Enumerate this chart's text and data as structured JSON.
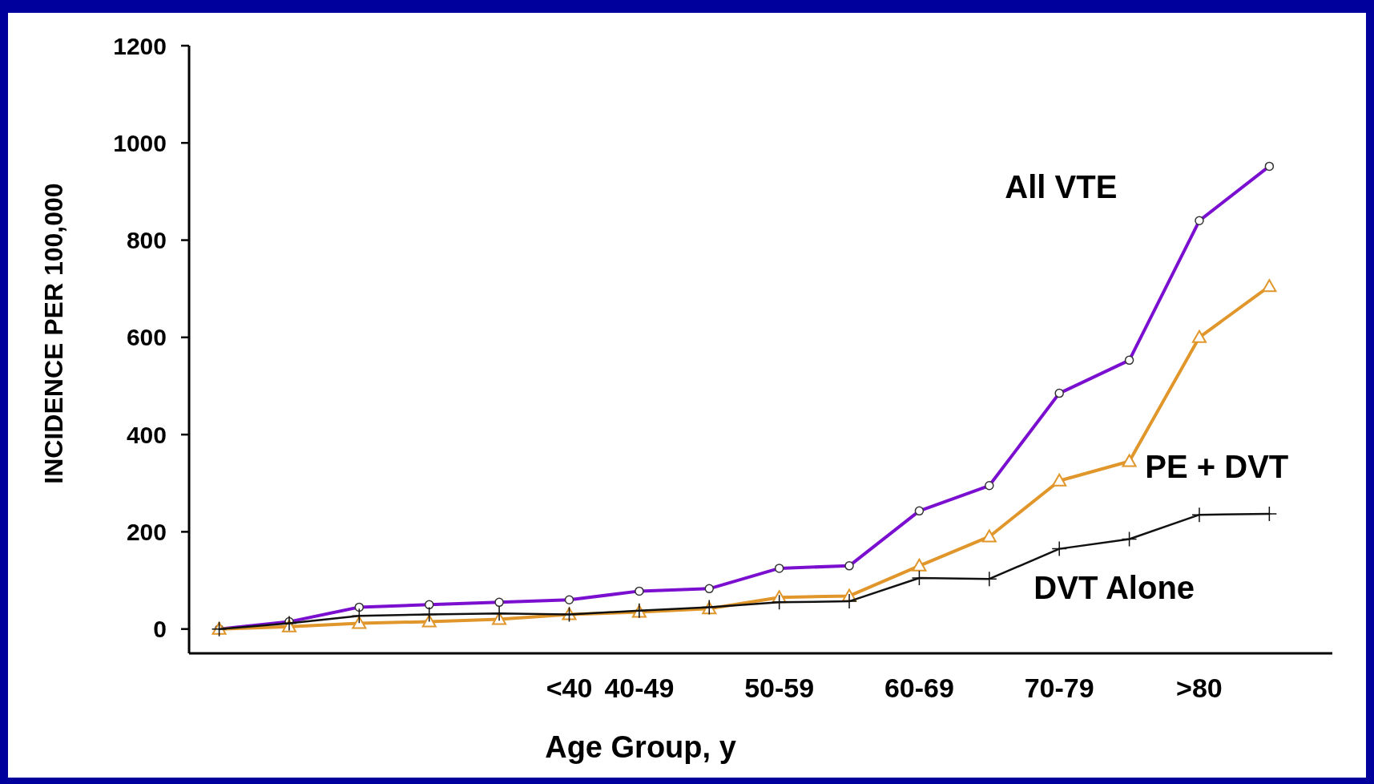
{
  "chart_data": {
    "type": "line",
    "categories": [
      null,
      null,
      null,
      null,
      null,
      "<40",
      "40-49",
      null,
      "50-59",
      null,
      "60-69",
      null,
      "70-79",
      null,
      ">80",
      null
    ],
    "ylim": [
      -50,
      1200
    ],
    "yticks": [
      0,
      200,
      400,
      600,
      800,
      1000,
      1200
    ],
    "xlabel": "Age Group, y",
    "ylabel": "INCIDENCE PER 100,000",
    "grid": false,
    "series": [
      {
        "name": "All VTE",
        "color": "#7b0fd0",
        "marker": "circle",
        "values": [
          0,
          15,
          45,
          50,
          55,
          60,
          78,
          83,
          125,
          130,
          243,
          295,
          485,
          553,
          840,
          952
        ]
      },
      {
        "name": "PE + DVT",
        "color": "#e0962a",
        "marker": "triangle",
        "values": [
          0,
          5,
          12,
          15,
          20,
          30,
          35,
          42,
          65,
          68,
          130,
          190,
          305,
          345,
          600,
          705
        ]
      },
      {
        "name": "DVT Alone",
        "color": "#111111",
        "marker": "cross",
        "values": [
          0,
          12,
          27,
          30,
          32,
          30,
          38,
          45,
          55,
          57,
          105,
          103,
          165,
          185,
          235,
          237
        ]
      }
    ]
  }
}
